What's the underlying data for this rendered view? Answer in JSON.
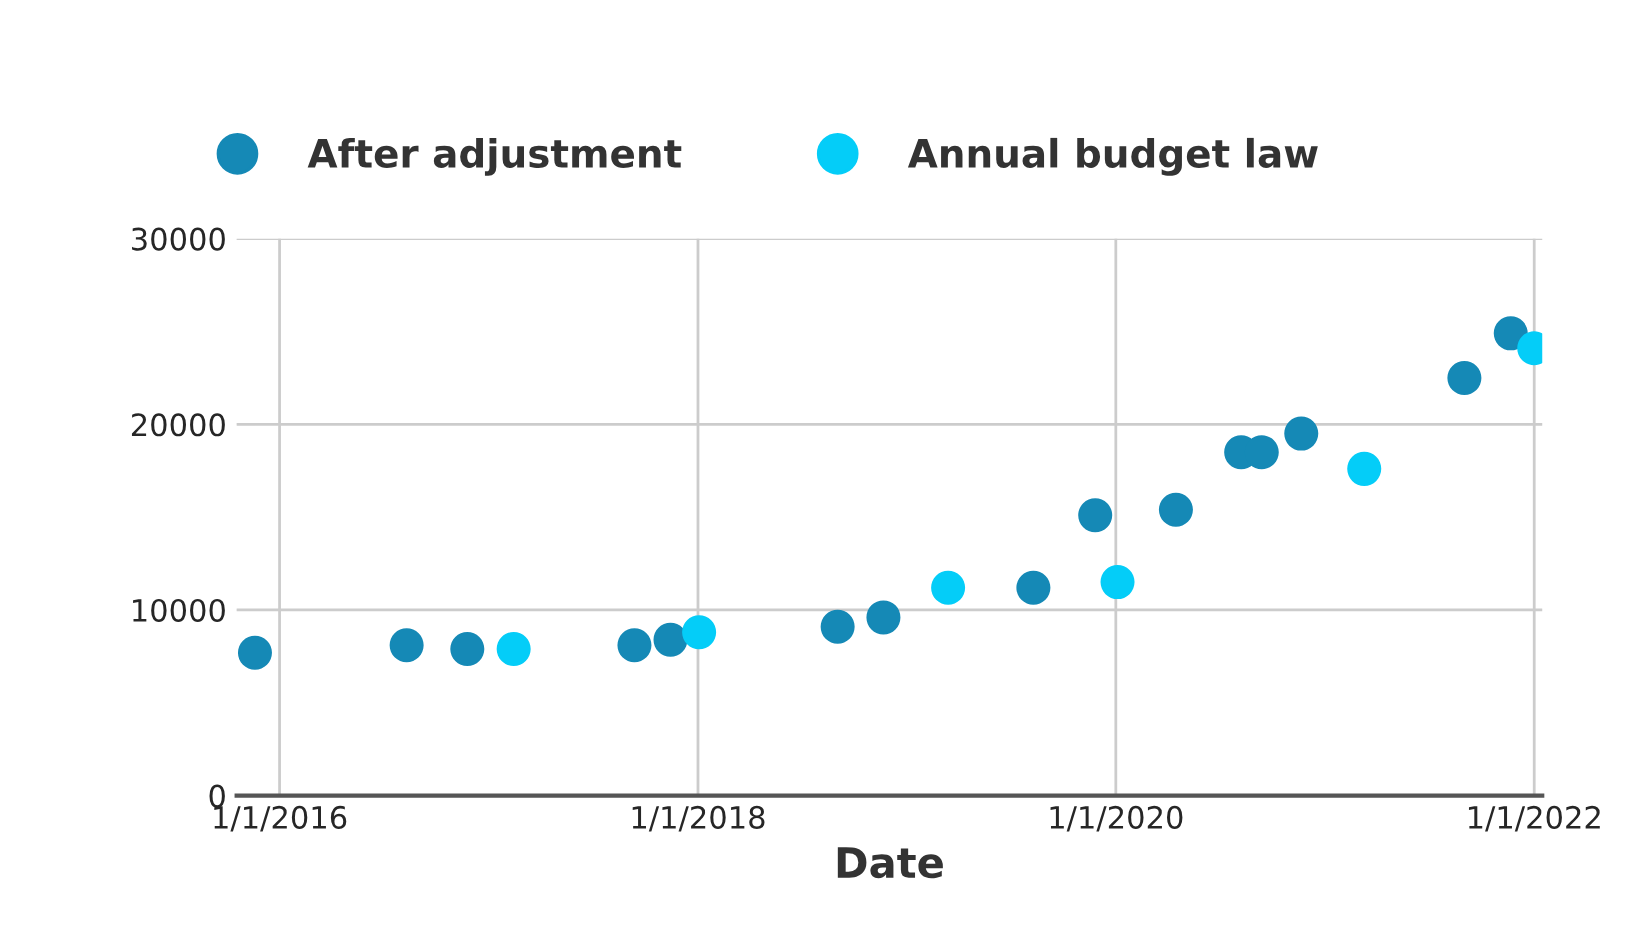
{
  "chart_data": {
    "type": "scatter",
    "xlabel": "Date",
    "marker": "circle",
    "grid": true,
    "legend": "top",
    "xlim": [
      "2015-10-18",
      "2022-01-15"
    ],
    "ylim": [
      0,
      30000
    ],
    "xticks": [
      {
        "value": "2016-01-01",
        "label": "1/1/2016"
      },
      {
        "value": "2018-01-01",
        "label": "1/1/2018"
      },
      {
        "value": "2020-01-01",
        "label": "1/1/2020"
      },
      {
        "value": "2022-01-01",
        "label": "1/1/2022"
      }
    ],
    "yticks": [
      0,
      10000,
      20000,
      30000
    ],
    "series": [
      {
        "name": "After adjustment",
        "color": "#1589b6",
        "x": [
          "2015-11-19",
          "2016-08-10",
          "2016-11-24",
          "2017-09-12",
          "2017-11-14",
          "2018-09-02",
          "2018-11-21",
          "2019-08-10",
          "2019-11-26",
          "2020-04-15",
          "2020-08-07",
          "2020-09-12",
          "2020-11-20",
          "2021-09-01",
          "2021-11-21"
        ],
        "values": [
          7700,
          8100,
          7900,
          8100,
          8400,
          9100,
          9600,
          11200,
          15100,
          15400,
          18500,
          18500,
          19500,
          22500,
          24900
        ]
      },
      {
        "name": "Annual budget law",
        "color": "#04cdf8",
        "x": [
          "2017-02-13",
          "2018-01-03",
          "2019-03-14",
          "2020-01-04",
          "2021-03-10",
          "2022-01-01"
        ],
        "values": [
          7900,
          8800,
          11200,
          11500,
          17600,
          24100
        ]
      }
    ]
  }
}
